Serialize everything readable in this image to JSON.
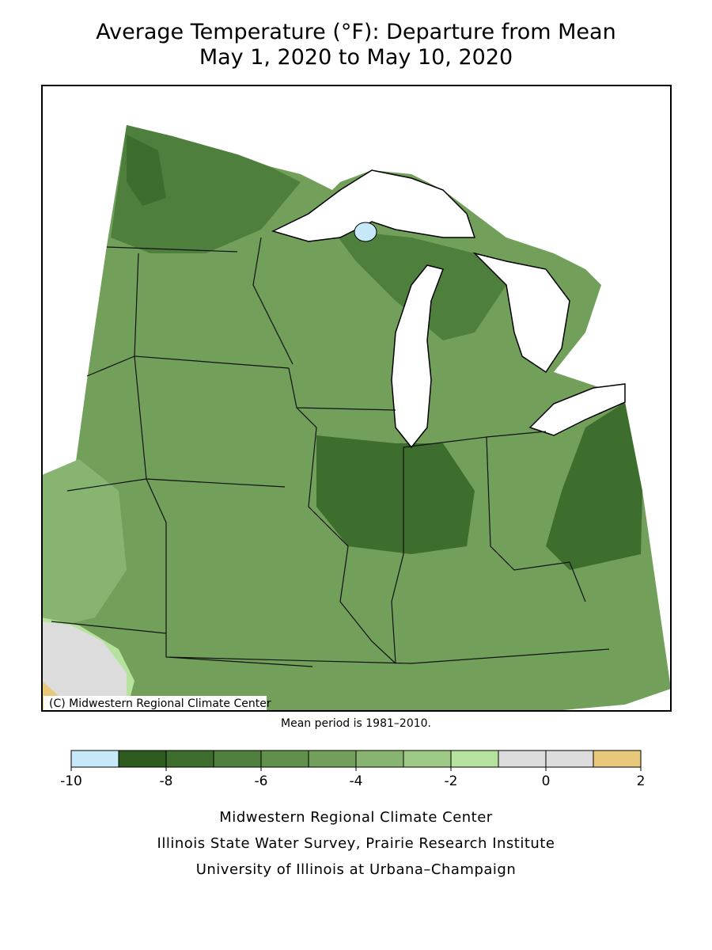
{
  "header": {
    "title": "Average Temperature (°F): Departure from Mean",
    "subtitle": "May 1, 2020 to May 10, 2020"
  },
  "map": {
    "credit": "(C) Midwestern Regional Climate Center",
    "note": "Mean period is 1981–2010."
  },
  "legend": {
    "bins": [
      -10,
      -9,
      -8,
      -7,
      -6,
      -5,
      -4,
      -3,
      -2,
      -1,
      0,
      1,
      2
    ],
    "colors": [
      "#c6e8f8",
      "#2d5a1f",
      "#3e6e2d",
      "#4f7f3c",
      "#60904b",
      "#72a05b",
      "#87b470",
      "#9fca86",
      "#b5e39d",
      "#dcdcdc",
      "#dcdcdc",
      "#e8c87a"
    ],
    "ticks": [
      -10,
      -8,
      -6,
      -4,
      -2,
      0,
      2
    ]
  },
  "footer": {
    "lines": [
      "Midwestern Regional Climate Center",
      "Illinois State Water Survey, Prairie Research Institute",
      "University of Illinois at Urbana–Champaign"
    ]
  }
}
